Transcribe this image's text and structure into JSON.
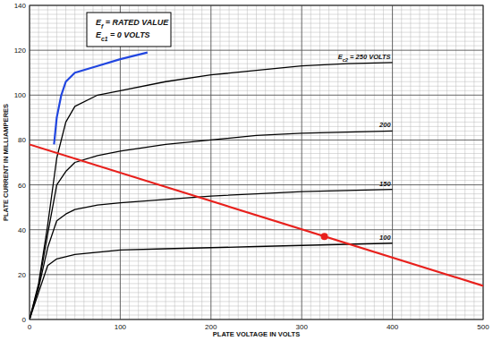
{
  "chart_data": {
    "type": "line",
    "x_label": "PLATE VOLTAGE IN VOLTS",
    "y_label": "PLATE CURRENT IN MILLIAMPERES",
    "annotations": [
      "Ef = RATED VALUE",
      "Ec1 = 0 VOLTS"
    ],
    "x": [
      0,
      10,
      20,
      30,
      40,
      50,
      75,
      100,
      150,
      200,
      250,
      300,
      350,
      400
    ],
    "series": [
      {
        "name": "Ec2 = 250 VOLTS",
        "type": "line",
        "color": "#000000",
        "values": [
          0,
          16,
          42,
          72,
          88,
          95,
          100,
          102,
          106,
          109,
          111,
          113,
          114,
          114.5
        ]
      },
      {
        "name": "200",
        "type": "line",
        "color": "#000000",
        "values": [
          0,
          15,
          38,
          60,
          66,
          70,
          73,
          75,
          78,
          80,
          82,
          83,
          83.5,
          84
        ]
      },
      {
        "name": "150",
        "type": "line",
        "color": "#000000",
        "values": [
          0,
          14,
          32,
          44,
          47,
          49,
          51,
          52,
          53.5,
          55,
          56,
          57,
          57.5,
          58
        ]
      },
      {
        "name": "100",
        "type": "line",
        "color": "#000000",
        "values": [
          0,
          12,
          24,
          27,
          28,
          29,
          30,
          31,
          31.5,
          32,
          32.5,
          33,
          33.5,
          34
        ]
      },
      {
        "type": "line",
        "color": "#2146e0",
        "x": [
          27,
          30,
          35,
          40,
          50,
          75,
          100,
          130
        ],
        "values": [
          78,
          90,
          100,
          106,
          110,
          113,
          116,
          119
        ]
      },
      {
        "type": "line",
        "color": "#e8201c",
        "x": [
          0,
          500
        ],
        "values": [
          78,
          15
        ]
      },
      {
        "type": "scatter",
        "color": "#e8201c",
        "marker": "circle",
        "x": [
          325
        ],
        "values": [
          37
        ]
      }
    ],
    "xlim": [
      0,
      500
    ],
    "ylim": [
      0,
      140
    ],
    "xticks": [
      0,
      100,
      200,
      300,
      400,
      500
    ],
    "yticks": [
      0,
      20,
      40,
      60,
      80,
      100,
      120,
      140
    ],
    "grid": true
  }
}
